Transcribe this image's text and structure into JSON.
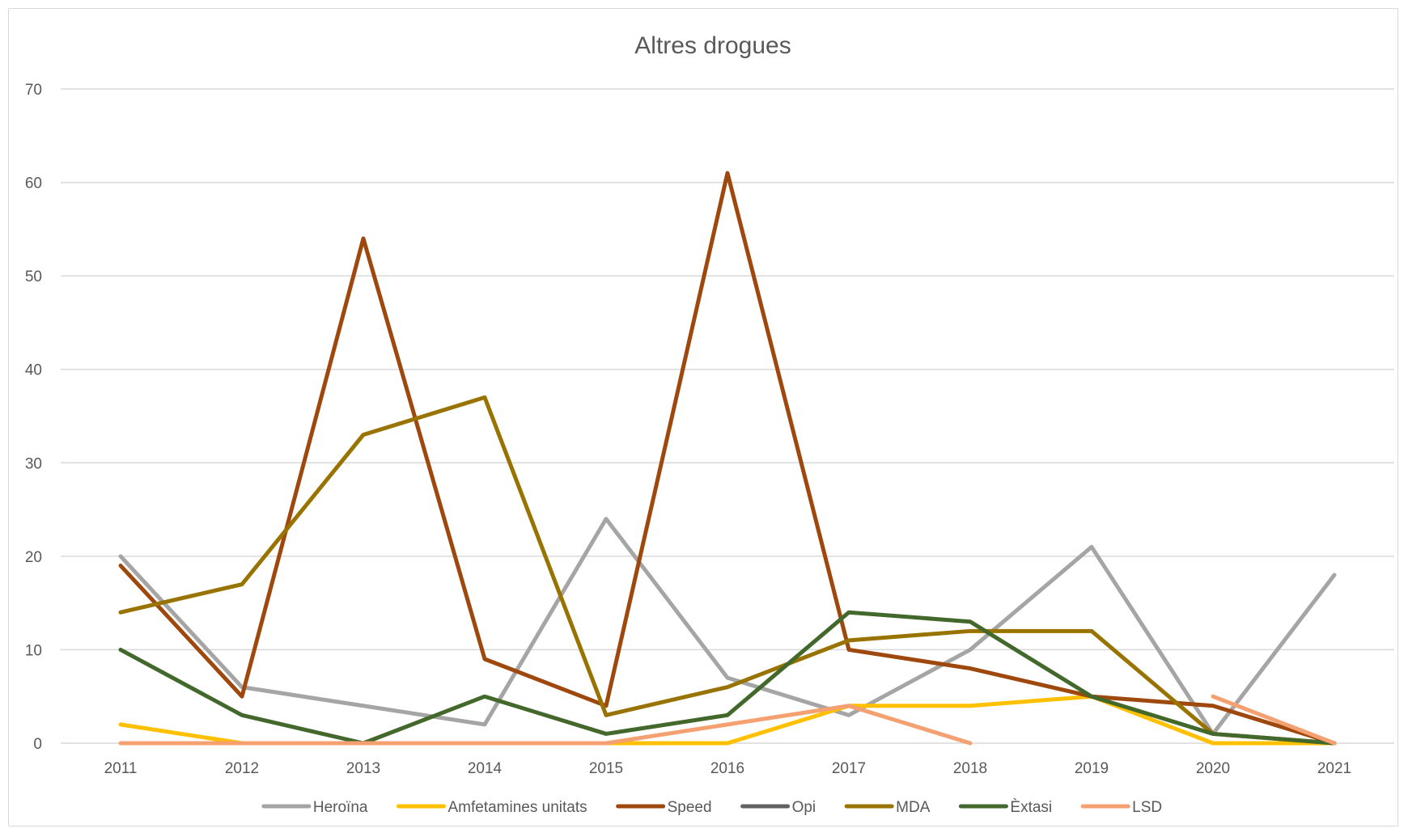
{
  "chart_data": {
    "type": "line",
    "title": "Altres drogues",
    "xlabel": "",
    "ylabel": "",
    "categories": [
      "2011",
      "2012",
      "2013",
      "2014",
      "2015",
      "2016",
      "2017",
      "2018",
      "2019",
      "2020",
      "2021"
    ],
    "ylim": [
      0,
      70
    ],
    "yticks": [
      0,
      10,
      20,
      30,
      40,
      50,
      60,
      70
    ],
    "grid": true,
    "legend_position": "bottom",
    "series": [
      {
        "name": "Heroïna",
        "color": "#a5a5a5",
        "values": [
          20,
          6,
          4,
          2,
          24,
          7,
          3,
          10,
          21,
          1,
          18
        ]
      },
      {
        "name": "Amfetamines unitats",
        "color": "#ffc000",
        "values": [
          2,
          0,
          0,
          0,
          0,
          0,
          4,
          4,
          5,
          0,
          0
        ]
      },
      {
        "name": "Speed",
        "color": "#9e480e",
        "values": [
          19,
          5,
          54,
          9,
          4,
          61,
          10,
          8,
          5,
          4,
          0
        ]
      },
      {
        "name": "Opi",
        "color": "#636363",
        "values": [
          null,
          null,
          null,
          null,
          null,
          null,
          null,
          null,
          null,
          null,
          null
        ]
      },
      {
        "name": "MDA",
        "color": "#997300",
        "values": [
          14,
          17,
          33,
          37,
          3,
          6,
          11,
          12,
          12,
          1,
          0
        ]
      },
      {
        "name": "Èxtasi",
        "color": "#43682b",
        "values": [
          10,
          3,
          0,
          5,
          1,
          3,
          14,
          13,
          5,
          1,
          0
        ]
      },
      {
        "name": "LSD",
        "color": "#f4a070",
        "values": [
          0,
          0,
          0,
          0,
          0,
          2,
          4,
          0,
          null,
          5,
          0
        ]
      }
    ]
  }
}
